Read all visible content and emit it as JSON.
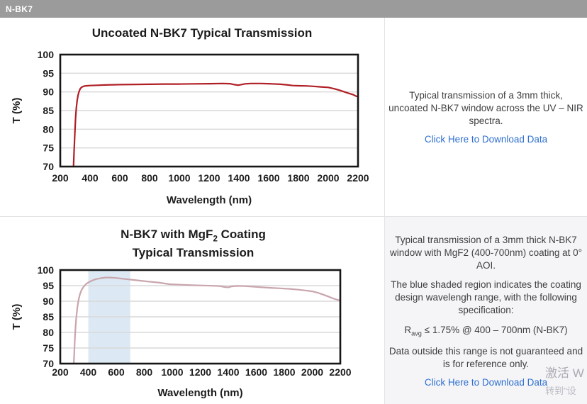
{
  "header": {
    "title": "N-BK7"
  },
  "sections": {
    "top": {
      "description": "Typical transmission of a 3mm thick, uncoated N-BK7 window across the UV – NIR spectra.",
      "download_link": "Click Here to Download Data"
    },
    "bottom": {
      "description": "Typical transmission of a 3mm thick N-BK7 window with MgF2 (400-700nm) coating at 0° AOI.",
      "shaded_note": "The blue shaded region indicates the coating design wavelengh range, with the following specification:",
      "spec_r": "R",
      "spec_sub": "avg",
      "spec_rest": " ≤ 1.75% @ 400 – 700nm (N-BK7)",
      "outside_note": "Data outside this range is not guaranteed and is for reference only.",
      "download_link": "Click Here to Download Data"
    }
  },
  "watermark": {
    "line1": "激活 W",
    "line2": "转到\"设"
  },
  "colors": {
    "header_bg": "#9b9b9b",
    "panel_bg": "#f5f5f7",
    "link": "#2e6fd0",
    "chart_border": "#161616",
    "grid": "#d9d9d9",
    "uncoated_line": "#b01f26",
    "coated_line": "#c9a5ad",
    "band_fill": "#dce9f4"
  },
  "chart_data": [
    {
      "type": "line",
      "title": "Uncoated N-BK7 Typical Transmission",
      "xlabel": "Wavelength (nm)",
      "ylabel": "T (%)",
      "xlim": [
        200,
        2200
      ],
      "ylim": [
        70,
        100
      ],
      "xticks": [
        200,
        400,
        600,
        800,
        1000,
        1200,
        1400,
        1600,
        1800,
        2000,
        2200
      ],
      "yticks": [
        70,
        75,
        80,
        85,
        90,
        95,
        100
      ],
      "grid": "horizontal",
      "grid_color": "#d9d9d9",
      "legend": "none",
      "series": [
        {
          "name": "Uncoated N-BK7",
          "color": "#b01f26",
          "points": [
            [
              289,
              70
            ],
            [
              293,
              74
            ],
            [
              298,
              79
            ],
            [
              303,
              83
            ],
            [
              308,
              85.8
            ],
            [
              314,
              87.8
            ],
            [
              320,
              89.2
            ],
            [
              327,
              90.2
            ],
            [
              335,
              90.9
            ],
            [
              345,
              91.3
            ],
            [
              360,
              91.55
            ],
            [
              380,
              91.65
            ],
            [
              400,
              91.7
            ],
            [
              450,
              91.78
            ],
            [
              500,
              91.85
            ],
            [
              600,
              91.95
            ],
            [
              700,
              92.0
            ],
            [
              800,
              92.05
            ],
            [
              900,
              92.1
            ],
            [
              1000,
              92.1
            ],
            [
              1100,
              92.15
            ],
            [
              1200,
              92.2
            ],
            [
              1290,
              92.25
            ],
            [
              1340,
              92.2
            ],
            [
              1370,
              91.95
            ],
            [
              1395,
              91.8
            ],
            [
              1415,
              91.95
            ],
            [
              1440,
              92.15
            ],
            [
              1480,
              92.25
            ],
            [
              1550,
              92.25
            ],
            [
              1620,
              92.15
            ],
            [
              1680,
              92.05
            ],
            [
              1730,
              91.85
            ],
            [
              1760,
              91.7
            ],
            [
              1800,
              91.65
            ],
            [
              1850,
              91.6
            ],
            [
              1900,
              91.5
            ],
            [
              1950,
              91.35
            ],
            [
              2000,
              91.2
            ],
            [
              2040,
              90.85
            ],
            [
              2080,
              90.4
            ],
            [
              2110,
              90.0
            ],
            [
              2140,
              89.6
            ],
            [
              2165,
              89.3
            ],
            [
              2185,
              88.9
            ],
            [
              2200,
              88.7
            ]
          ]
        }
      ]
    },
    {
      "type": "line",
      "title": "N-BK7 with MgF2 Coating Typical Transmission",
      "title_line1_pre": "N-BK7 with MgF",
      "title_line1_sub": "2",
      "title_line1_post": " Coating",
      "title_line2": "Typical Transmission",
      "xlabel": "Wavelength (nm)",
      "ylabel": "T (%)",
      "xlim": [
        200,
        2200
      ],
      "ylim": [
        70,
        100
      ],
      "xticks": [
        200,
        400,
        600,
        800,
        1000,
        1200,
        1400,
        1600,
        1800,
        2000,
        2200
      ],
      "yticks": [
        70,
        75,
        80,
        85,
        90,
        95,
        100
      ],
      "grid": "horizontal",
      "grid_color": "#d9d9d9",
      "legend": "none",
      "band": {
        "from": 400,
        "to": 700,
        "color": "#dce9f4",
        "label": "coating design wavelength range"
      },
      "series": [
        {
          "name": "N-BK7 with MgF2 coating",
          "color": "#c9a5ad",
          "points": [
            [
              296,
              70
            ],
            [
              300,
              73.5
            ],
            [
              304,
              77.5
            ],
            [
              309,
              81.5
            ],
            [
              315,
              85
            ],
            [
              322,
              88
            ],
            [
              330,
              90.3
            ],
            [
              340,
              92.2
            ],
            [
              352,
              93.6
            ],
            [
              366,
              94.6
            ],
            [
              382,
              95.4
            ],
            [
              400,
              96.0
            ],
            [
              425,
              96.6
            ],
            [
              455,
              97.1
            ],
            [
              490,
              97.4
            ],
            [
              525,
              97.6
            ],
            [
              560,
              97.6
            ],
            [
              600,
              97.45
            ],
            [
              640,
              97.25
            ],
            [
              680,
              97.05
            ],
            [
              720,
              96.85
            ],
            [
              770,
              96.6
            ],
            [
              830,
              96.3
            ],
            [
              900,
              96.0
            ],
            [
              980,
              95.45
            ],
            [
              1060,
              95.3
            ],
            [
              1140,
              95.15
            ],
            [
              1220,
              95.05
            ],
            [
              1290,
              94.95
            ],
            [
              1340,
              94.85
            ],
            [
              1375,
              94.55
            ],
            [
              1400,
              94.45
            ],
            [
              1425,
              94.75
            ],
            [
              1460,
              94.9
            ],
            [
              1520,
              94.85
            ],
            [
              1600,
              94.6
            ],
            [
              1680,
              94.35
            ],
            [
              1760,
              94.15
            ],
            [
              1840,
              93.95
            ],
            [
              1900,
              93.7
            ],
            [
              1950,
              93.45
            ],
            [
              2000,
              93.15
            ],
            [
              2040,
              92.7
            ],
            [
              2080,
              92.1
            ],
            [
              2120,
              91.4
            ],
            [
              2155,
              90.8
            ],
            [
              2180,
              90.45
            ],
            [
              2200,
              90.25
            ]
          ]
        }
      ]
    }
  ]
}
